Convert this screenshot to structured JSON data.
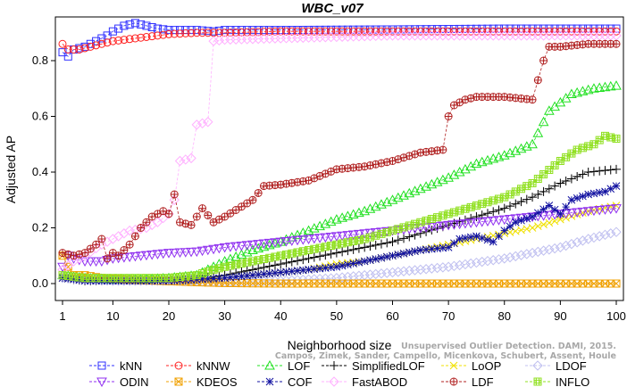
{
  "chart_data": {
    "type": "line",
    "title": "WBC_v07",
    "xlabel": "Neighborhood size",
    "ylabel": "Adjusted AP",
    "xlim": [
      1,
      100
    ],
    "ylim": [
      -0.02,
      0.95
    ],
    "x_ticks": [
      1,
      10,
      20,
      30,
      40,
      50,
      60,
      70,
      80,
      90,
      100
    ],
    "y_ticks": [
      0.0,
      0.2,
      0.4,
      0.6,
      0.8
    ],
    "x_tick_labels": [
      "1",
      "10",
      "20",
      "30",
      "40",
      "50",
      "60",
      "70",
      "80",
      "90",
      "100"
    ],
    "y_tick_labels": [
      "0.0",
      "0.2",
      "0.4",
      "0.6",
      "0.8"
    ],
    "grid": false,
    "legend_position": "bottom",
    "watermark_lines": [
      "Unsupervised Outlier Detection. DAMI, 2015.",
      "Campos, Zimek, Sander, Campello, Micenkova, Schubert, Assent, Houle"
    ],
    "series": [
      {
        "name": "kNN",
        "color": "#3030ff",
        "marker": "square",
        "points": [
          [
            1,
            0.83
          ],
          [
            2,
            0.815
          ],
          [
            3,
            0.84
          ],
          [
            5,
            0.85
          ],
          [
            7,
            0.87
          ],
          [
            9,
            0.89
          ],
          [
            10,
            0.905
          ],
          [
            12,
            0.925
          ],
          [
            14,
            0.935
          ],
          [
            16,
            0.925
          ],
          [
            18,
            0.915
          ],
          [
            20,
            0.91
          ],
          [
            25,
            0.91
          ],
          [
            28,
            0.905
          ],
          [
            30,
            0.91
          ],
          [
            40,
            0.91
          ],
          [
            60,
            0.912
          ],
          [
            80,
            0.915
          ],
          [
            100,
            0.915
          ]
        ]
      },
      {
        "name": "kNNW",
        "color": "#ff2020",
        "marker": "circle",
        "points": [
          [
            1,
            0.86
          ],
          [
            2,
            0.84
          ],
          [
            4,
            0.84
          ],
          [
            6,
            0.85
          ],
          [
            8,
            0.86
          ],
          [
            10,
            0.87
          ],
          [
            14,
            0.88
          ],
          [
            18,
            0.89
          ],
          [
            20,
            0.895
          ],
          [
            25,
            0.9
          ],
          [
            30,
            0.9
          ],
          [
            40,
            0.905
          ],
          [
            60,
            0.905
          ],
          [
            80,
            0.905
          ],
          [
            100,
            0.905
          ]
        ]
      },
      {
        "name": "LOF",
        "color": "#20e020",
        "marker": "triangle-up",
        "points": [
          [
            1,
            0.03
          ],
          [
            5,
            0.02
          ],
          [
            10,
            0.015
          ],
          [
            15,
            0.015
          ],
          [
            20,
            0.02
          ],
          [
            25,
            0.03
          ],
          [
            28,
            0.06
          ],
          [
            30,
            0.08
          ],
          [
            35,
            0.12
          ],
          [
            40,
            0.15
          ],
          [
            45,
            0.19
          ],
          [
            50,
            0.23
          ],
          [
            55,
            0.26
          ],
          [
            60,
            0.3
          ],
          [
            65,
            0.34
          ],
          [
            70,
            0.38
          ],
          [
            75,
            0.43
          ],
          [
            80,
            0.46
          ],
          [
            85,
            0.5
          ],
          [
            88,
            0.62
          ],
          [
            92,
            0.68
          ],
          [
            96,
            0.7
          ],
          [
            100,
            0.71
          ]
        ]
      },
      {
        "name": "SimplifiedLOF",
        "color": "#000000",
        "marker": "plus",
        "points": [
          [
            1,
            0.02
          ],
          [
            5,
            0.01
          ],
          [
            10,
            0.01
          ],
          [
            15,
            0.01
          ],
          [
            20,
            0.01
          ],
          [
            25,
            0.015
          ],
          [
            30,
            0.03
          ],
          [
            35,
            0.05
          ],
          [
            40,
            0.07
          ],
          [
            45,
            0.09
          ],
          [
            50,
            0.11
          ],
          [
            55,
            0.13
          ],
          [
            60,
            0.15
          ],
          [
            65,
            0.18
          ],
          [
            70,
            0.21
          ],
          [
            75,
            0.24
          ],
          [
            80,
            0.27
          ],
          [
            85,
            0.31
          ],
          [
            90,
            0.36
          ],
          [
            95,
            0.4
          ],
          [
            100,
            0.41
          ]
        ]
      },
      {
        "name": "LoOP",
        "color": "#f0e000",
        "marker": "x",
        "points": [
          [
            1,
            0.02
          ],
          [
            5,
            0.015
          ],
          [
            10,
            0.01
          ],
          [
            15,
            0.01
          ],
          [
            20,
            0.01
          ],
          [
            25,
            0.01
          ],
          [
            30,
            0.02
          ],
          [
            35,
            0.03
          ],
          [
            40,
            0.04
          ],
          [
            45,
            0.05
          ],
          [
            50,
            0.07
          ],
          [
            55,
            0.08
          ],
          [
            60,
            0.1
          ],
          [
            65,
            0.12
          ],
          [
            70,
            0.14
          ],
          [
            75,
            0.16
          ],
          [
            80,
            0.18
          ],
          [
            85,
            0.2
          ],
          [
            90,
            0.23
          ],
          [
            95,
            0.26
          ],
          [
            100,
            0.28
          ]
        ]
      },
      {
        "name": "LDOF",
        "color": "#c0c0f0",
        "marker": "diamond",
        "points": [
          [
            1,
            0.02
          ],
          [
            5,
            0.015
          ],
          [
            10,
            0.01
          ],
          [
            20,
            0.01
          ],
          [
            30,
            0.005
          ],
          [
            40,
            0.01
          ],
          [
            50,
            0.02
          ],
          [
            60,
            0.04
          ],
          [
            70,
            0.06
          ],
          [
            80,
            0.09
          ],
          [
            90,
            0.13
          ],
          [
            95,
            0.16
          ],
          [
            100,
            0.185
          ]
        ]
      },
      {
        "name": "ODIN",
        "color": "#9030f0",
        "marker": "triangle-down",
        "points": [
          [
            1,
            0.06
          ],
          [
            2,
            0.1
          ],
          [
            3,
            0.09
          ],
          [
            5,
            0.08
          ],
          [
            8,
            0.08
          ],
          [
            10,
            0.09
          ],
          [
            15,
            0.1
          ],
          [
            20,
            0.11
          ],
          [
            25,
            0.115
          ],
          [
            30,
            0.13
          ],
          [
            40,
            0.15
          ],
          [
            50,
            0.17
          ],
          [
            60,
            0.19
          ],
          [
            70,
            0.21
          ],
          [
            80,
            0.23
          ],
          [
            90,
            0.25
          ],
          [
            100,
            0.27
          ]
        ]
      },
      {
        "name": "KDEOS",
        "color": "#f0a000",
        "marker": "square-x",
        "points": [
          [
            1,
            0.1
          ],
          [
            2,
            0.06
          ],
          [
            3,
            0.03
          ],
          [
            5,
            0.03
          ],
          [
            8,
            0.02
          ],
          [
            12,
            0.015
          ],
          [
            18,
            0.01
          ],
          [
            25,
            0.005
          ],
          [
            30,
            0.002
          ],
          [
            40,
            0.0
          ],
          [
            60,
            0.0
          ],
          [
            80,
            0.0
          ],
          [
            100,
            0.0
          ]
        ]
      },
      {
        "name": "COF",
        "color": "#1010a0",
        "marker": "star",
        "points": [
          [
            1,
            0.02
          ],
          [
            5,
            0.01
          ],
          [
            10,
            0.01
          ],
          [
            20,
            0.01
          ],
          [
            30,
            0.02
          ],
          [
            40,
            0.04
          ],
          [
            50,
            0.06
          ],
          [
            55,
            0.08
          ],
          [
            60,
            0.1
          ],
          [
            65,
            0.12
          ],
          [
            70,
            0.13
          ],
          [
            72,
            0.16
          ],
          [
            75,
            0.17
          ],
          [
            78,
            0.15
          ],
          [
            80,
            0.19
          ],
          [
            82,
            0.22
          ],
          [
            85,
            0.24
          ],
          [
            88,
            0.28
          ],
          [
            90,
            0.25
          ],
          [
            92,
            0.3
          ],
          [
            95,
            0.32
          ],
          [
            98,
            0.33
          ],
          [
            100,
            0.35
          ]
        ]
      },
      {
        "name": "FastABOD",
        "color": "#ffb0ff",
        "marker": "diamond",
        "points": [
          [
            1,
            0.05
          ],
          [
            3,
            0.08
          ],
          [
            5,
            0.1
          ],
          [
            8,
            0.14
          ],
          [
            10,
            0.16
          ],
          [
            13,
            0.19
          ],
          [
            16,
            0.2
          ],
          [
            18,
            0.22
          ],
          [
            20,
            0.25
          ],
          [
            21,
            0.3
          ],
          [
            22,
            0.44
          ],
          [
            24,
            0.45
          ],
          [
            25,
            0.57
          ],
          [
            26,
            0.575
          ],
          [
            27,
            0.58
          ],
          [
            28,
            0.87
          ],
          [
            30,
            0.875
          ],
          [
            40,
            0.88
          ],
          [
            60,
            0.89
          ],
          [
            80,
            0.89
          ],
          [
            100,
            0.89
          ]
        ]
      },
      {
        "name": "LDF",
        "color": "#b02020",
        "marker": "circle-plus",
        "points": [
          [
            1,
            0.11
          ],
          [
            3,
            0.1
          ],
          [
            5,
            0.11
          ],
          [
            7,
            0.14
          ],
          [
            8,
            0.16
          ],
          [
            9,
            0.09
          ],
          [
            10,
            0.11
          ],
          [
            11,
            0.1
          ],
          [
            12,
            0.12
          ],
          [
            13,
            0.14
          ],
          [
            15,
            0.2
          ],
          [
            17,
            0.24
          ],
          [
            19,
            0.26
          ],
          [
            20,
            0.25
          ],
          [
            21,
            0.32
          ],
          [
            22,
            0.22
          ],
          [
            24,
            0.21
          ],
          [
            26,
            0.27
          ],
          [
            28,
            0.22
          ],
          [
            30,
            0.24
          ],
          [
            35,
            0.3
          ],
          [
            37,
            0.35
          ],
          [
            40,
            0.355
          ],
          [
            45,
            0.37
          ],
          [
            50,
            0.41
          ],
          [
            55,
            0.42
          ],
          [
            60,
            0.44
          ],
          [
            65,
            0.47
          ],
          [
            69,
            0.48
          ],
          [
            70,
            0.6
          ],
          [
            71,
            0.64
          ],
          [
            73,
            0.66
          ],
          [
            75,
            0.67
          ],
          [
            80,
            0.67
          ],
          [
            85,
            0.66
          ],
          [
            87,
            0.8
          ],
          [
            88,
            0.85
          ],
          [
            90,
            0.85
          ],
          [
            95,
            0.86
          ],
          [
            100,
            0.86
          ]
        ]
      },
      {
        "name": "INFLO",
        "color": "#90e020",
        "marker": "hash-square",
        "points": [
          [
            1,
            0.03
          ],
          [
            5,
            0.02
          ],
          [
            10,
            0.02
          ],
          [
            15,
            0.02
          ],
          [
            20,
            0.02
          ],
          [
            25,
            0.03
          ],
          [
            28,
            0.05
          ],
          [
            30,
            0.06
          ],
          [
            35,
            0.08
          ],
          [
            40,
            0.1
          ],
          [
            45,
            0.12
          ],
          [
            50,
            0.14
          ],
          [
            55,
            0.16
          ],
          [
            60,
            0.19
          ],
          [
            65,
            0.22
          ],
          [
            70,
            0.25
          ],
          [
            75,
            0.28
          ],
          [
            80,
            0.31
          ],
          [
            85,
            0.36
          ],
          [
            90,
            0.44
          ],
          [
            93,
            0.48
          ],
          [
            96,
            0.5
          ],
          [
            98,
            0.53
          ],
          [
            100,
            0.52
          ]
        ]
      }
    ]
  }
}
